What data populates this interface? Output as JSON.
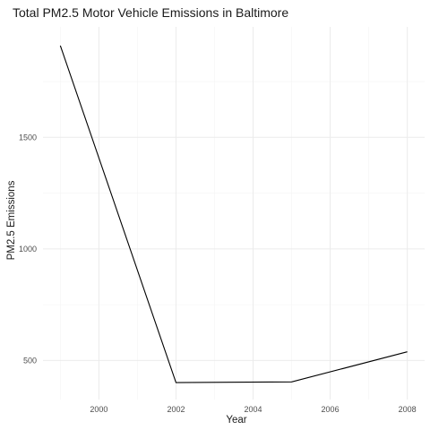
{
  "chart_data": {
    "type": "line",
    "title": "Total PM2.5 Motor Vehicle Emissions in Baltimore",
    "xlabel": "Year",
    "ylabel": "PM2.5 Emissions",
    "x": [
      1999,
      2002,
      2005,
      2008
    ],
    "series": [
      {
        "values": [
          1911,
          401,
          404,
          539
        ]
      }
    ],
    "xlim": [
      1998.55,
      2008.45
    ],
    "ylim": [
      325,
      1995
    ],
    "xticks": [
      2000,
      2002,
      2004,
      2006,
      2008
    ],
    "xtick_labels": [
      "2000",
      "2002",
      "2004",
      "2006",
      "2008"
    ],
    "yticks": [
      500,
      1000,
      1500
    ],
    "ytick_labels": [
      "500",
      "1000",
      "1500"
    ],
    "grid": true,
    "line_color": "#000000",
    "grid_color": "#ebebeb"
  }
}
